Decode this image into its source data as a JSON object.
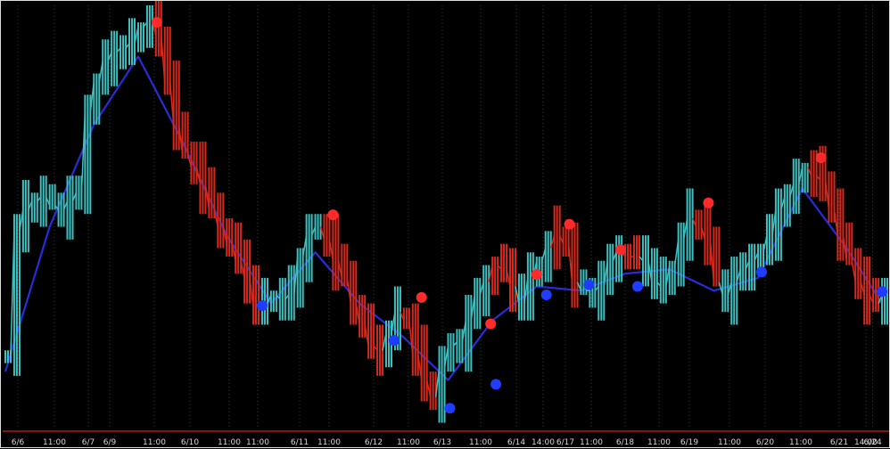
{
  "chart_data": {
    "type": "line",
    "x_tick_labels": [
      "6/6",
      "11:00",
      "6/7",
      "6/9",
      "11:00",
      "6/10",
      "11:00",
      "11:00",
      "6/11",
      "11:00",
      "6/12",
      "11:00",
      "6/13",
      "11:00",
      "6/14",
      "14:00",
      "6/17",
      "11:00",
      "6/18",
      "11:00",
      "6/19",
      "11:00",
      "6/20",
      "11:00",
      "6/21",
      "14:00",
      "6/24"
    ],
    "xlim": [
      0,
      99.8
    ],
    "ylim": [
      0,
      100
    ],
    "grid": "vertical-dotted",
    "series": [
      {
        "kind": "price",
        "up_color": "#3fbfbf",
        "down_color": "#d42a1e",
        "x": [
          0,
          1,
          2,
          3,
          4,
          5,
          6,
          7,
          8,
          9,
          10,
          11,
          12,
          13,
          14,
          15,
          16,
          17,
          18,
          19,
          20,
          21,
          22,
          23,
          24,
          25,
          26,
          27,
          28,
          29,
          30,
          31,
          32,
          33,
          34,
          35,
          36,
          37,
          38,
          39,
          40,
          41,
          42,
          43,
          44,
          45,
          46,
          47,
          48,
          49,
          50,
          51,
          52,
          53,
          54,
          55,
          56,
          57,
          58,
          59,
          60,
          61,
          62,
          63,
          64,
          65,
          66,
          67,
          68,
          69,
          70,
          71,
          72,
          73,
          74,
          75,
          76,
          77,
          78,
          79,
          80,
          81,
          82,
          83,
          84,
          85,
          86,
          87,
          88,
          89,
          90,
          91,
          92,
          93,
          94,
          95,
          96,
          97,
          98,
          99
        ],
        "y": [
          18,
          47,
          52,
          54,
          55,
          53,
          52,
          54,
          56,
          75,
          82,
          87,
          89,
          90,
          91,
          95,
          96,
          93,
          82,
          72,
          65,
          62,
          58,
          52,
          48,
          44,
          40,
          36,
          29,
          30,
          32,
          31,
          32,
          41,
          46,
          48,
          45,
          40,
          36,
          30,
          25,
          20,
          19,
          23,
          28,
          26,
          18,
          12,
          8,
          15,
          20,
          21,
          26,
          32,
          35,
          39,
          38,
          34,
          30,
          36,
          40,
          43,
          46,
          44,
          35,
          33,
          33,
          34,
          40,
          42,
          41,
          41,
          40,
          35,
          34,
          39,
          45,
          50,
          48,
          45,
          35,
          32,
          35,
          38,
          40,
          42,
          46,
          52,
          55,
          58,
          62,
          60,
          59,
          52,
          46,
          40,
          35,
          32,
          30,
          32
        ],
        "direction": [
          "u",
          "u",
          "u",
          "u",
          "u",
          "u",
          "u",
          "u",
          "u",
          "u",
          "u",
          "u",
          "u",
          "u",
          "u",
          "u",
          "u",
          "d",
          "d",
          "d",
          "d",
          "d",
          "d",
          "d",
          "d",
          "d",
          "d",
          "d",
          "d",
          "u",
          "u",
          "u",
          "u",
          "u",
          "u",
          "u",
          "d",
          "d",
          "d",
          "d",
          "d",
          "d",
          "d",
          "u",
          "u",
          "d",
          "d",
          "d",
          "d",
          "u",
          "u",
          "u",
          "u",
          "u",
          "u",
          "d",
          "d",
          "d",
          "u",
          "u",
          "u",
          "u",
          "d",
          "d",
          "d",
          "u",
          "u",
          "u",
          "u",
          "u",
          "d",
          "d",
          "u",
          "u",
          "u",
          "u",
          "u",
          "u",
          "d",
          "d",
          "d",
          "u",
          "u",
          "u",
          "u",
          "u",
          "u",
          "u",
          "u",
          "u",
          "u",
          "d",
          "d",
          "d",
          "d",
          "d",
          "d",
          "d",
          "d",
          "u"
        ]
      },
      {
        "kind": "moving-average",
        "color": "#2b2bd8",
        "x": [
          0,
          5,
          10,
          15,
          20,
          25,
          30,
          35,
          40,
          45,
          50,
          55,
          60,
          65,
          70,
          75,
          80,
          85,
          90,
          95,
          99
        ],
        "y": [
          14,
          48,
          72,
          88,
          68,
          46,
          30,
          42,
          30,
          22,
          12,
          26,
          34,
          33,
          37,
          38,
          33,
          36,
          57,
          43,
          30
        ]
      }
    ],
    "markers": [
      {
        "type": "peak",
        "color": "#ff2a2a",
        "x": 17.1,
        "y": 96.0
      },
      {
        "type": "peak",
        "color": "#ff2a2a",
        "x": 37.0,
        "y": 50.8
      },
      {
        "type": "peak",
        "color": "#ff2a2a",
        "x": 47.0,
        "y": 31.4
      },
      {
        "type": "peak",
        "color": "#ff2a2a",
        "x": 54.8,
        "y": 25.2
      },
      {
        "type": "peak",
        "color": "#ff2a2a",
        "x": 60.0,
        "y": 36.8
      },
      {
        "type": "peak",
        "color": "#ff2a2a",
        "x": 63.7,
        "y": 48.6
      },
      {
        "type": "peak",
        "color": "#ff2a2a",
        "x": 69.5,
        "y": 42.6
      },
      {
        "type": "peak",
        "color": "#ff2a2a",
        "x": 79.4,
        "y": 53.6
      },
      {
        "type": "peak",
        "color": "#ff2a2a",
        "x": 92.1,
        "y": 64.2
      },
      {
        "type": "trough",
        "color": "#1f3cff",
        "x": 29.0,
        "y": 29.5
      },
      {
        "type": "trough",
        "color": "#1f3cff",
        "x": 43.9,
        "y": 21.3
      },
      {
        "type": "trough",
        "color": "#1f3cff",
        "x": 50.2,
        "y": 5.4
      },
      {
        "type": "trough",
        "color": "#1f3cff",
        "x": 55.4,
        "y": 11.0
      },
      {
        "type": "trough",
        "color": "#1f3cff",
        "x": 61.1,
        "y": 32.0
      },
      {
        "type": "trough",
        "color": "#1f3cff",
        "x": 65.9,
        "y": 34.4
      },
      {
        "type": "trough",
        "color": "#1f3cff",
        "x": 71.4,
        "y": 34.0
      },
      {
        "type": "trough",
        "color": "#1f3cff",
        "x": 85.4,
        "y": 37.4
      },
      {
        "type": "trough",
        "color": "#1f3cff",
        "x": 99.0,
        "y": 32.8
      }
    ]
  },
  "colors": {
    "background": "#000000",
    "grid": "#3a3a3a",
    "frame": "#dddddd",
    "baseline": "#b01818"
  }
}
